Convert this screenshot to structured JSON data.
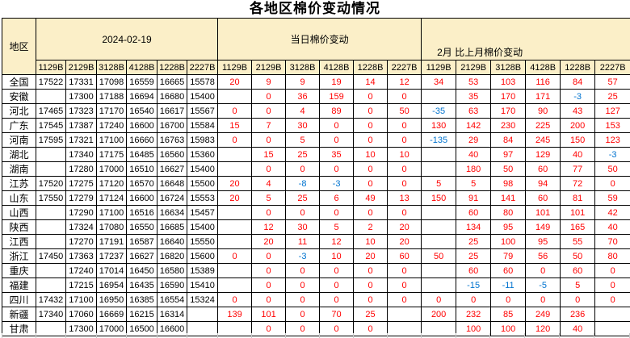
{
  "title": "各地区棉价变动情况",
  "colors": {
    "price_text": "#000000",
    "positive_change": "#FF0000",
    "negative_change": "#0073CF",
    "header_bg": "#FBEFC8",
    "grid_border": "#000000"
  },
  "table": {
    "region_header": "地区",
    "groups": [
      {
        "label": "2024-02-19"
      },
      {
        "label": "当日棉价变动"
      },
      {
        "label": "2月 比上月棉价变动"
      }
    ],
    "grades": [
      "1129B",
      "2129B",
      "3128B",
      "4128B",
      "1228B",
      "2227B"
    ],
    "rows": [
      {
        "region": "全国",
        "prices": [
          "17522",
          "17331",
          "17098",
          "16559",
          "16665",
          "15578"
        ],
        "daily": [
          "20",
          "9",
          "9",
          "19",
          "14",
          "12"
        ],
        "monthly": [
          "34",
          "53",
          "103",
          "116",
          "84",
          "57"
        ]
      },
      {
        "region": "安徽",
        "prices": [
          "",
          "17300",
          "17188",
          "16694",
          "16680",
          "15400"
        ],
        "daily": [
          "",
          "0",
          "36",
          "159",
          "0",
          "0"
        ],
        "monthly": [
          "",
          "35",
          "170",
          "171",
          "-3",
          "25"
        ]
      },
      {
        "region": "河北",
        "prices": [
          "17465",
          "17323",
          "17170",
          "16540",
          "16617",
          "15567"
        ],
        "daily": [
          "0",
          "0",
          "4",
          "89",
          "0",
          "50"
        ],
        "monthly": [
          "-35",
          "63",
          "170",
          "90",
          "43",
          "127"
        ]
      },
      {
        "region": "广东",
        "prices": [
          "17545",
          "17387",
          "17240",
          "16600",
          "16700",
          "15584"
        ],
        "daily": [
          "15",
          "7",
          "30",
          "0",
          "0",
          "0"
        ],
        "monthly": [
          "130",
          "142",
          "230",
          "225",
          "200",
          "153"
        ]
      },
      {
        "region": "河南",
        "prices": [
          "17595",
          "17321",
          "17100",
          "16660",
          "16763",
          "15983"
        ],
        "daily": [
          "0",
          "0",
          "5",
          "0",
          "0",
          "0"
        ],
        "monthly": [
          "-135",
          "29",
          "84",
          "245",
          "150",
          "123"
        ]
      },
      {
        "region": "湖北",
        "prices": [
          "",
          "17340",
          "17175",
          "16485",
          "16560",
          "15360"
        ],
        "daily": [
          "",
          "15",
          "25",
          "35",
          "10",
          "10"
        ],
        "monthly": [
          "",
          "40",
          "97",
          "129",
          "40",
          "-3"
        ]
      },
      {
        "region": "湖南",
        "prices": [
          "",
          "17280",
          "17000",
          "16510",
          "16627",
          "15400"
        ],
        "daily": [
          "",
          "0",
          "0",
          "0",
          "0",
          "0"
        ],
        "monthly": [
          "",
          "180",
          "50",
          "60",
          "77",
          "50"
        ]
      },
      {
        "region": "江苏",
        "prices": [
          "17520",
          "17275",
          "17120",
          "16570",
          "16648",
          "15500"
        ],
        "daily": [
          "20",
          "4",
          "-8",
          "-3",
          "0",
          "0"
        ],
        "monthly": [
          "5",
          "5",
          "98",
          "94",
          "72",
          "0"
        ]
      },
      {
        "region": "山东",
        "prices": [
          "17550",
          "17279",
          "17124",
          "16600",
          "16724",
          "15553"
        ],
        "daily": [
          "20",
          "5",
          "25",
          "6",
          "49",
          "13"
        ],
        "monthly": [
          "150",
          "91",
          "141",
          "60",
          "81",
          "59"
        ]
      },
      {
        "region": "山西",
        "prices": [
          "",
          "17290",
          "17100",
          "16516",
          "16634",
          "15457"
        ],
        "daily": [
          "",
          "0",
          "0",
          "0",
          "0",
          "0"
        ],
        "monthly": [
          "",
          "60",
          "80",
          "101",
          "101",
          "42"
        ]
      },
      {
        "region": "陕西",
        "prices": [
          "",
          "17324",
          "17080",
          "16550",
          "16685",
          "15400"
        ],
        "daily": [
          "",
          "12",
          "30",
          "5",
          "2",
          "20"
        ],
        "monthly": [
          "",
          "134",
          "95",
          "149",
          "165",
          "40"
        ]
      },
      {
        "region": "江西",
        "prices": [
          "",
          "17270",
          "17191",
          "16587",
          "16640",
          "15550"
        ],
        "daily": [
          "",
          "20",
          "11",
          "12",
          "10",
          "20"
        ],
        "monthly": [
          "",
          "25",
          "100",
          "95",
          "55",
          "70"
        ]
      },
      {
        "region": "浙江",
        "prices": [
          "17450",
          "17363",
          "17237",
          "16627",
          "16820",
          "15600"
        ],
        "daily": [
          "0",
          "0",
          "-3",
          "10",
          "20",
          "60"
        ],
        "monthly": [
          "50",
          "25",
          "79",
          "56",
          "50",
          "80"
        ]
      },
      {
        "region": "重庆",
        "prices": [
          "",
          "17240",
          "17014",
          "16450",
          "16580",
          "15389"
        ],
        "daily": [
          "",
          "0",
          "0",
          "0",
          "0",
          "0"
        ],
        "monthly": [
          "",
          "60",
          "60",
          "0",
          "60",
          "0"
        ]
      },
      {
        "region": "福建",
        "prices": [
          "",
          "17215",
          "16954",
          "16435",
          "16590",
          "15410"
        ],
        "daily": [
          "",
          "0",
          "0",
          "0",
          "0",
          "0"
        ],
        "monthly": [
          "",
          "-15",
          "-11",
          "-5",
          "5",
          "0"
        ]
      },
      {
        "region": "四川",
        "prices": [
          "17432",
          "17100",
          "16950",
          "16385",
          "16554",
          "15324"
        ],
        "daily": [
          "0",
          "0",
          "0",
          "0",
          "0",
          "0"
        ],
        "monthly": [
          "0",
          "0",
          "0",
          "0",
          "0",
          "0"
        ]
      },
      {
        "region": "新疆",
        "prices": [
          "17340",
          "17060",
          "16669",
          "16215",
          "16314",
          ""
        ],
        "daily": [
          "139",
          "101",
          "0",
          "70",
          "25",
          ""
        ],
        "monthly": [
          "200",
          "232",
          "85",
          "249",
          "236",
          ""
        ]
      },
      {
        "region": "甘肃",
        "prices": [
          "",
          "17300",
          "17000",
          "16500",
          "16600",
          ""
        ],
        "daily": [
          "",
          "0",
          "0",
          "0",
          "0",
          ""
        ],
        "monthly": [
          "",
          "100",
          "100",
          "120",
          "40",
          ""
        ]
      }
    ]
  }
}
